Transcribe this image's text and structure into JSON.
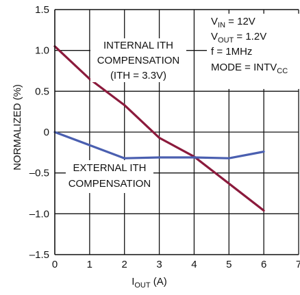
{
  "chart_data": {
    "type": "line",
    "x": [
      0,
      1,
      2,
      3,
      4,
      5,
      6
    ],
    "series": [
      {
        "name": "INTERNAL ITH COMPENSATION (ITH = 3.3V)",
        "color": "#8b1a3c",
        "values": [
          1.05,
          0.65,
          0.33,
          -0.07,
          -0.3,
          -0.63,
          -0.96
        ]
      },
      {
        "name": "EXTERNAL ITH COMPENSATION",
        "color": "#4a5fb0",
        "values": [
          0.0,
          -0.16,
          -0.32,
          -0.31,
          -0.31,
          -0.32,
          -0.24
        ]
      }
    ],
    "xlim": [
      0,
      7
    ],
    "ylim": [
      -1.5,
      1.5
    ],
    "x_ticks": [
      "0",
      "1",
      "2",
      "3",
      "4",
      "5",
      "6",
      "7"
    ],
    "y_ticks": [
      "1.5",
      "1.0",
      "0.5",
      "0",
      "–0.5",
      "–1.0",
      "–1.5"
    ],
    "xlabel": {
      "main": "I",
      "sub": "OUT",
      "rest": " (A)"
    },
    "ylabel": "NORMALIZED (%)",
    "grid": true,
    "annotations": {
      "internal": [
        "INTERNAL ITH",
        "COMPENSATION",
        "(ITH = 3.3V)"
      ],
      "external": [
        "EXTERNAL ITH",
        "COMPENSATION"
      ],
      "conditions": [
        {
          "main": "V",
          "sub": "IN",
          "rest": " = 12V"
        },
        {
          "main": "V",
          "sub": "OUT",
          "rest": " = 1.2V"
        },
        {
          "main": "f = 1MHz",
          "sub": "",
          "rest": ""
        },
        {
          "main": "MODE = INTV",
          "sub": "CC",
          "rest": ""
        }
      ]
    }
  }
}
